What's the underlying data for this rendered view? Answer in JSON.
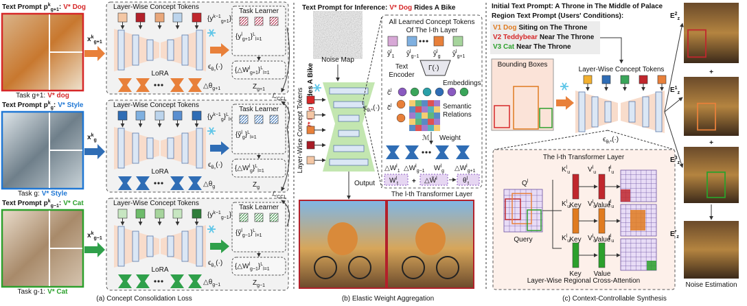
{
  "panel_a": {
    "caption": "(a) Concept Consolidation Loss",
    "loss": [
      {
        "b": "ℒ",
        "sub": "CCL"
      }
    ],
    "rows": [
      {
        "prompt": "Text Prompt",
        "p": [
          {
            "b": "p",
            "sup": "k",
            "sub": "g+1"
          },
          {
            "b": ":"
          }
        ],
        "concept": "V* Dog",
        "color": "#d62728",
        "task": "Task g+1:",
        "task_concept": "V* dog",
        "x": [
          {
            "b": "x",
            "sup": "k",
            "sub": "g+1"
          }
        ],
        "tokens_title": "Layer-Wise Concept Tokens",
        "token_set": [
          {
            "b": "{y",
            "sup": "k−1",
            "sub": "g+1"
          },
          {
            "b": "}",
            "sup": "L",
            "sub": "l=1"
          }
        ],
        "lora": "LoRA",
        "eps": [
          {
            "b": "ϵ",
            "sub": "θ₀"
          },
          {
            "b": "(·)"
          }
        ],
        "delta_theta": [
          {
            "b": "△θ",
            "sub": "g+1"
          }
        ],
        "learner_title": "Task Learner",
        "learner_set": [
          {
            "b": "{y",
            "sup": "l",
            "sub": "g+1"
          },
          {
            "b": "}",
            "sup": "L",
            "sub": "l=1"
          }
        ],
        "delta_w": [
          {
            "b": "{△W",
            "sup": "l",
            "sub": "g+1"
          },
          {
            "b": "}",
            "sup": "L",
            "sub": "l=1"
          }
        ],
        "z": [
          {
            "b": "Z",
            "sub": "g+1"
          }
        ]
      },
      {
        "prompt": "Text Prompt",
        "p": [
          {
            "b": "p",
            "sup": "k",
            "sub": "g"
          },
          {
            "b": ":"
          }
        ],
        "concept": "V* Style",
        "color": "#1f77d4",
        "task": "Task g:",
        "task_concept": "V* Style",
        "x": [
          {
            "b": "x",
            "sup": "k",
            "sub": "g"
          }
        ],
        "tokens_title": "Layer-Wise Concept Tokens",
        "token_set": [
          {
            "b": "{y",
            "sup": "k−1",
            "sub": "g"
          },
          {
            "b": "}",
            "sup": "L",
            "sub": "l=1"
          }
        ],
        "lora": "LoRA",
        "eps": [
          {
            "b": "ϵ",
            "sub": "θ₀"
          },
          {
            "b": "(·)"
          }
        ],
        "delta_theta": [
          {
            "b": "△θ",
            "sub": "g"
          }
        ],
        "learner_title": "Task Learner",
        "learner_set": [
          {
            "b": "{ỹ",
            "sup": "l",
            "sub": "g"
          },
          {
            "b": "}",
            "sup": "L",
            "sub": "l=1"
          }
        ],
        "delta_w": [
          {
            "b": "{△W",
            "sup": "l",
            "sub": "g"
          },
          {
            "b": "}",
            "sup": "L",
            "sub": "l=1"
          }
        ],
        "z": [
          {
            "b": "Z",
            "sub": "g"
          }
        ]
      },
      {
        "prompt": "Text Prompt",
        "p": [
          {
            "b": "p",
            "sup": "k",
            "sub": "g−1"
          },
          {
            "b": ":"
          }
        ],
        "concept": "V* Cat",
        "color": "#2ca02c",
        "task": "Task g-1:",
        "task_concept": "V* Cat",
        "x": [
          {
            "b": "x",
            "sup": "k",
            "sub": "g−1"
          }
        ],
        "tokens_title": "Layer-Wise Concept Tokens",
        "token_set": [
          {
            "b": "{y",
            "sup": "k−1",
            "sub": "g−1"
          },
          {
            "b": "}",
            "sup": "L",
            "sub": "l=1"
          }
        ],
        "lora": "LoRA",
        "eps": [
          {
            "b": "ϵ",
            "sub": "θ₀"
          },
          {
            "b": "(·)"
          }
        ],
        "delta_theta": [
          {
            "b": "△θ",
            "sub": "g−1"
          }
        ],
        "learner_title": "Task Learner",
        "learner_set": [
          {
            "b": "{ỹ",
            "sup": "l",
            "sub": "g−1"
          },
          {
            "b": "}",
            "sup": "L",
            "sub": "l=1"
          }
        ],
        "delta_w": [
          {
            "b": "{△W",
            "sup": "l",
            "sub": "g−1"
          },
          {
            "b": "}",
            "sup": "L",
            "sub": "l=1"
          }
        ],
        "z": [
          {
            "b": "Z",
            "sub": "g−1"
          }
        ]
      }
    ]
  },
  "panel_b": {
    "caption": "(b) Elastic Weight Aggregation",
    "title": "Text Prompt for Inference:",
    "concept": "V* Dog",
    "rest": "Rides A Bike",
    "noise": "Noise Map",
    "tokens_label": "Layer-Wise Concept Tokens",
    "eps": [
      {
        "b": "ϵ",
        "sub": "θₜ*"
      },
      {
        "b": "(·)"
      }
    ],
    "output": "Output",
    "detail": {
      "title": [
        "All Learned Concept Tokens",
        "Of The l-th Layer"
      ],
      "token_labels": [
        [
          {
            "b": "ŷ",
            "sup": "l",
            "sub": "1"
          }
        ],
        [
          {
            "b": "ŷ",
            "sup": "l",
            "sub": "g−1"
          }
        ],
        [
          {
            "b": "ŷ",
            "sup": "l",
            "sub": "g"
          }
        ],
        [
          {
            "b": "ŷ",
            "sup": "l",
            "sub": "g+1"
          }
        ]
      ],
      "encoder": [
        "Text",
        "Encoder"
      ],
      "gamma": [
        {
          "b": "Γ(·)"
        }
      ],
      "embeddings": "Embeddings",
      "c_hat": [
        {
          "b": "ĉ",
          "sup": "l"
        }
      ],
      "c_tilde": [
        {
          "b": "c̃",
          "sup": "l"
        }
      ],
      "relations": [
        "Semantic",
        "Relations"
      ],
      "m": [
        {
          "b": "ℳ"
        }
      ],
      "weight": "Weight",
      "weights": [
        [
          {
            "b": "△W",
            "sup": "l",
            "sub": "1"
          }
        ],
        [
          {
            "b": "△W",
            "sup": "l",
            "sub": "g−1"
          }
        ],
        [
          {
            "b": "W",
            "sup": "l",
            "sub": "g"
          }
        ],
        [
          {
            "b": "△W",
            "sup": "l",
            "sub": "g+1"
          }
        ]
      ],
      "w_t": [
        {
          "b": "W",
          "sup": "l",
          "sub": "t"
        }
      ],
      "plus": "+",
      "delta_w_tilde": [
        {
          "b": "△W̃",
          "sup": "l"
        }
      ],
      "theta_t": [
        {
          "b": "θ",
          "sup": "l",
          "sub": "t"
        }
      ],
      "layer": "The l-th Transformer Layer"
    }
  },
  "panel_c": {
    "caption": "(c) Context-Controllable Synthesis",
    "initial": "Initial Text Prompt: A Throne in The Middle of Palace",
    "region_title": "Region Text Prompt (Users' Conditions):",
    "regions": [
      {
        "concept": "V1 Dog",
        "rest": "Siting on The Throne",
        "color": "#e07b20"
      },
      {
        "concept": "V2 Teddybear",
        "rest": "Near The Throne",
        "color": "#d62728"
      },
      {
        "concept": "V3 Cat",
        "rest": "Near The Throne",
        "color": "#2ca02c"
      }
    ],
    "bbox": "Bounding Boxes",
    "tokens_title": "Layer-Wise Concept Tokens",
    "eps": [
      {
        "b": "ϵ",
        "sub": "θₜ*"
      },
      {
        "b": "(·)"
      }
    ],
    "detail": {
      "title": "The l-th Transformer Layer",
      "q": [
        {
          "b": "Q",
          "sup": "l"
        }
      ],
      "query": "Query",
      "rows": [
        {
          "k": [
            {
              "b": "K",
              "sup": "l",
              "sub": "u"
            }
          ],
          "v": [
            {
              "b": "V",
              "sup": "l",
              "sub": "u"
            }
          ],
          "f": [
            {
              "b": "f",
              "sup": "l",
              "sub": "u"
            }
          ],
          "key": "Key",
          "value": "Value",
          "color": "#c0272d"
        },
        {
          "k": [
            {
              "b": "K",
              "sup": "l",
              "sub": "u"
            }
          ],
          "v": [
            {
              "b": "V",
              "sup": "l",
              "sub": "u"
            }
          ],
          "f": [
            {
              "b": "f",
              "sup": "l",
              "sub": "u"
            }
          ],
          "key": "Key",
          "value": "Value",
          "color": "#e07b20"
        },
        {
          "k": [
            {
              "b": "K",
              "sup": "l",
              "sub": "u"
            }
          ],
          "v": [
            {
              "b": "V",
              "sup": "l",
              "sub": "u"
            }
          ],
          "f": [
            {
              "b": "f",
              "sup": "l",
              "sub": "u"
            }
          ],
          "key": "Key",
          "value": "Value",
          "color": "#2ca02c"
        }
      ],
      "caption": "Layer-Wise Regional Cross-Attention"
    },
    "estimates": [
      [
        {
          "b": "E",
          "sup": "2",
          "sub": "z"
        }
      ],
      [
        {
          "b": "E",
          "sup": "1",
          "sub": "z"
        }
      ],
      [
        {
          "b": "E",
          "sup": "3",
          "sub": "z"
        }
      ],
      [
        {
          "b": "E",
          "sup": "*",
          "sub": "z"
        }
      ]
    ],
    "plus": "+",
    "noise_estimation": "Noise Estimation"
  }
}
